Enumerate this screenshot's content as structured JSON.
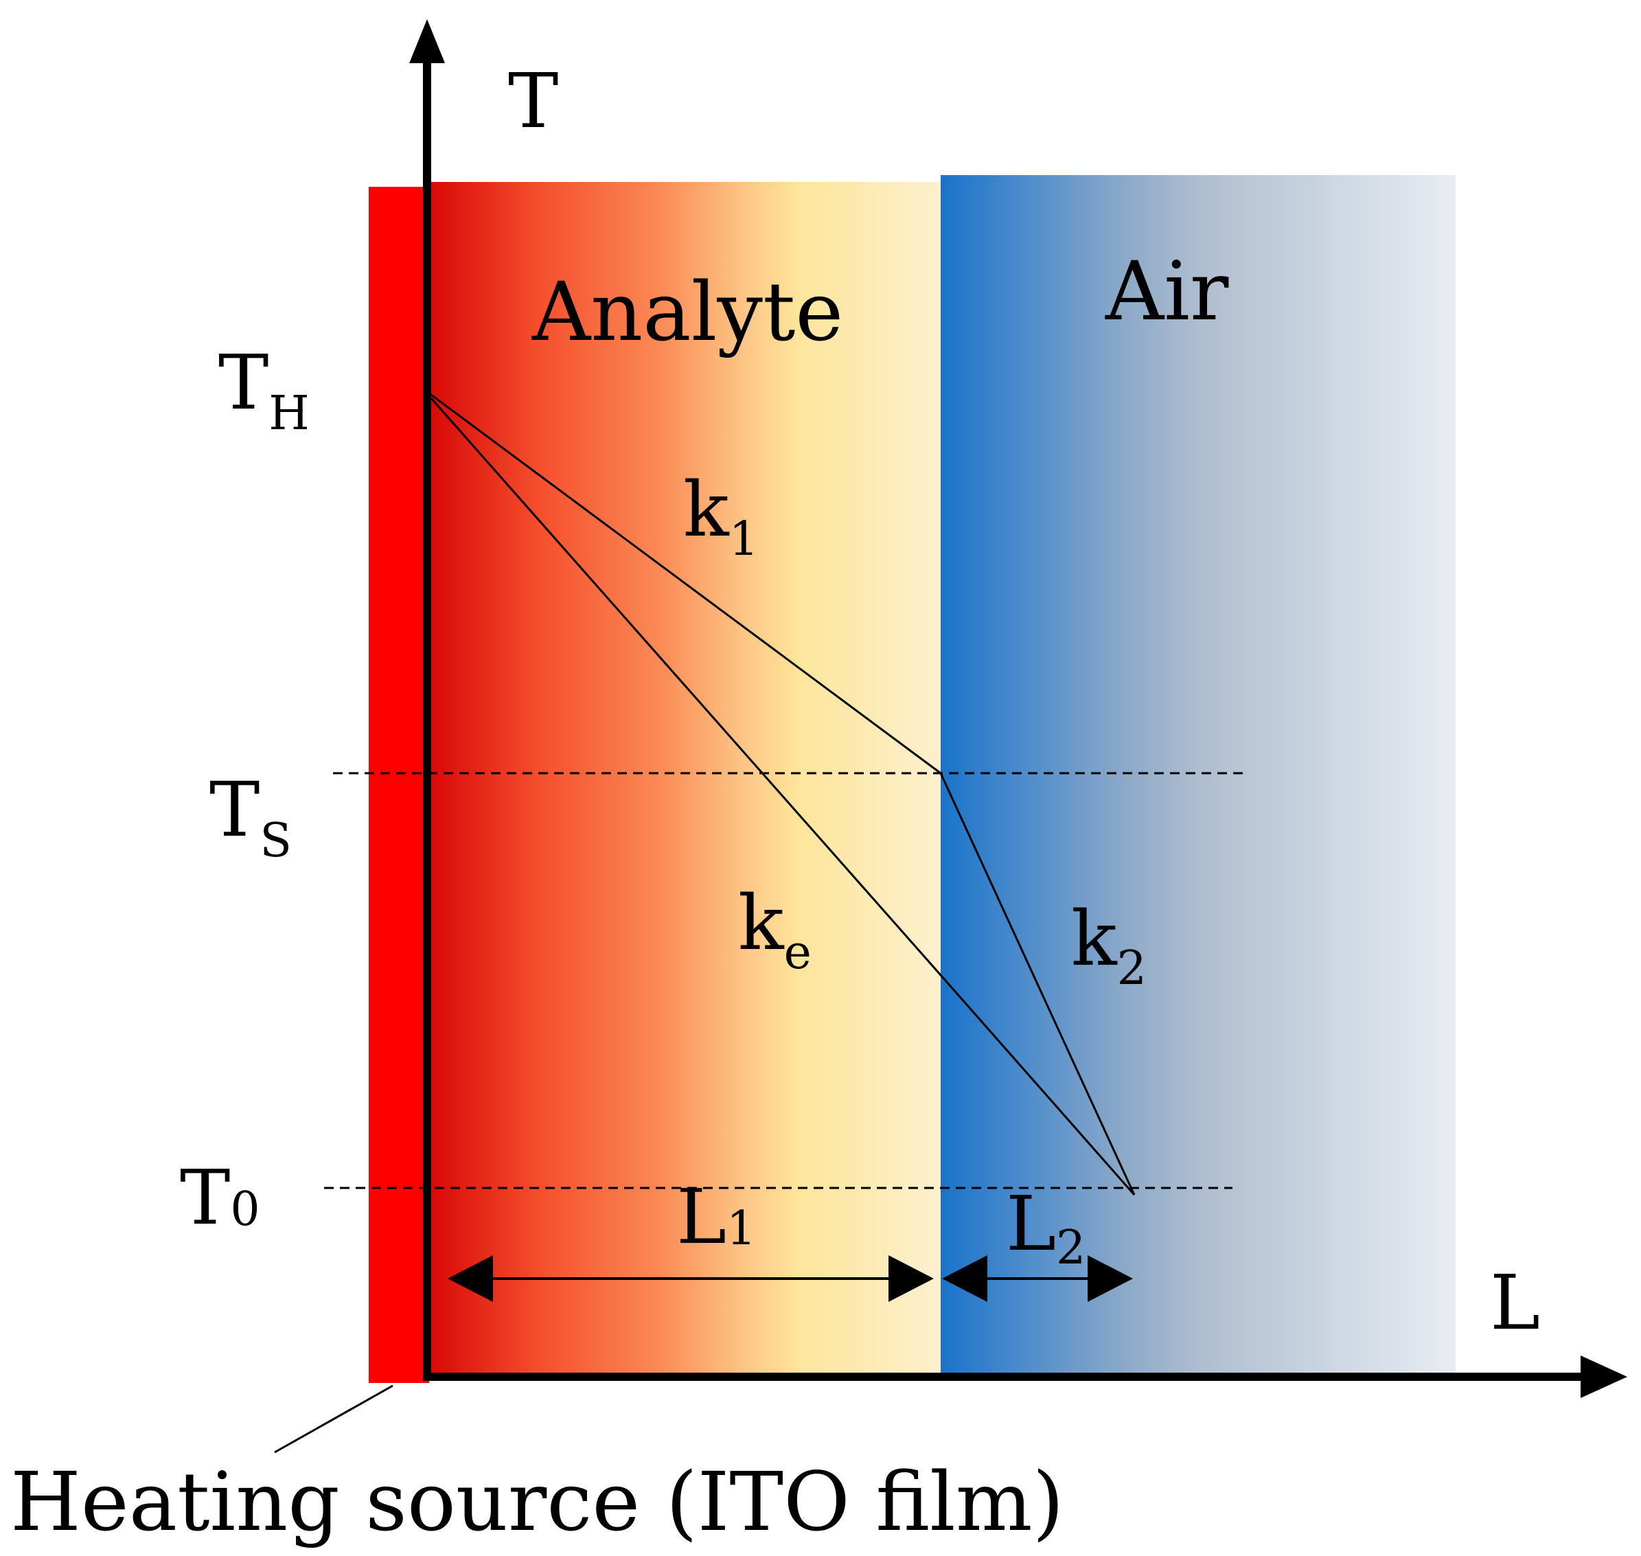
{
  "axes": {
    "y_label": "T",
    "x_label": "L"
  },
  "regions": {
    "analyte": "Analyte",
    "air": "Air"
  },
  "temperatures": {
    "th": {
      "main": "T",
      "sub": "H"
    },
    "ts": {
      "main": "T",
      "sub": "S"
    },
    "t0": {
      "main": "T",
      "sub": "0"
    }
  },
  "slopes": {
    "k1": {
      "main": "k",
      "sub": "1"
    },
    "ke": {
      "main": "k",
      "sub": "e"
    },
    "k2": {
      "main": "k",
      "sub": "2"
    }
  },
  "lengths": {
    "l1": {
      "main": "L",
      "sub": "1"
    },
    "l2": {
      "main": "L",
      "sub": "2"
    }
  },
  "caption": "Heating source (ITO film)",
  "colors": {
    "heater": "#ff0000",
    "analyte_start": "#dd0a0a",
    "analyte_mid": "#fde59b",
    "analyte_end": "#fdf0cf",
    "air_start": "#1a73c9",
    "air_mid": "#aebdcf",
    "air_end": "#e9edf3"
  }
}
